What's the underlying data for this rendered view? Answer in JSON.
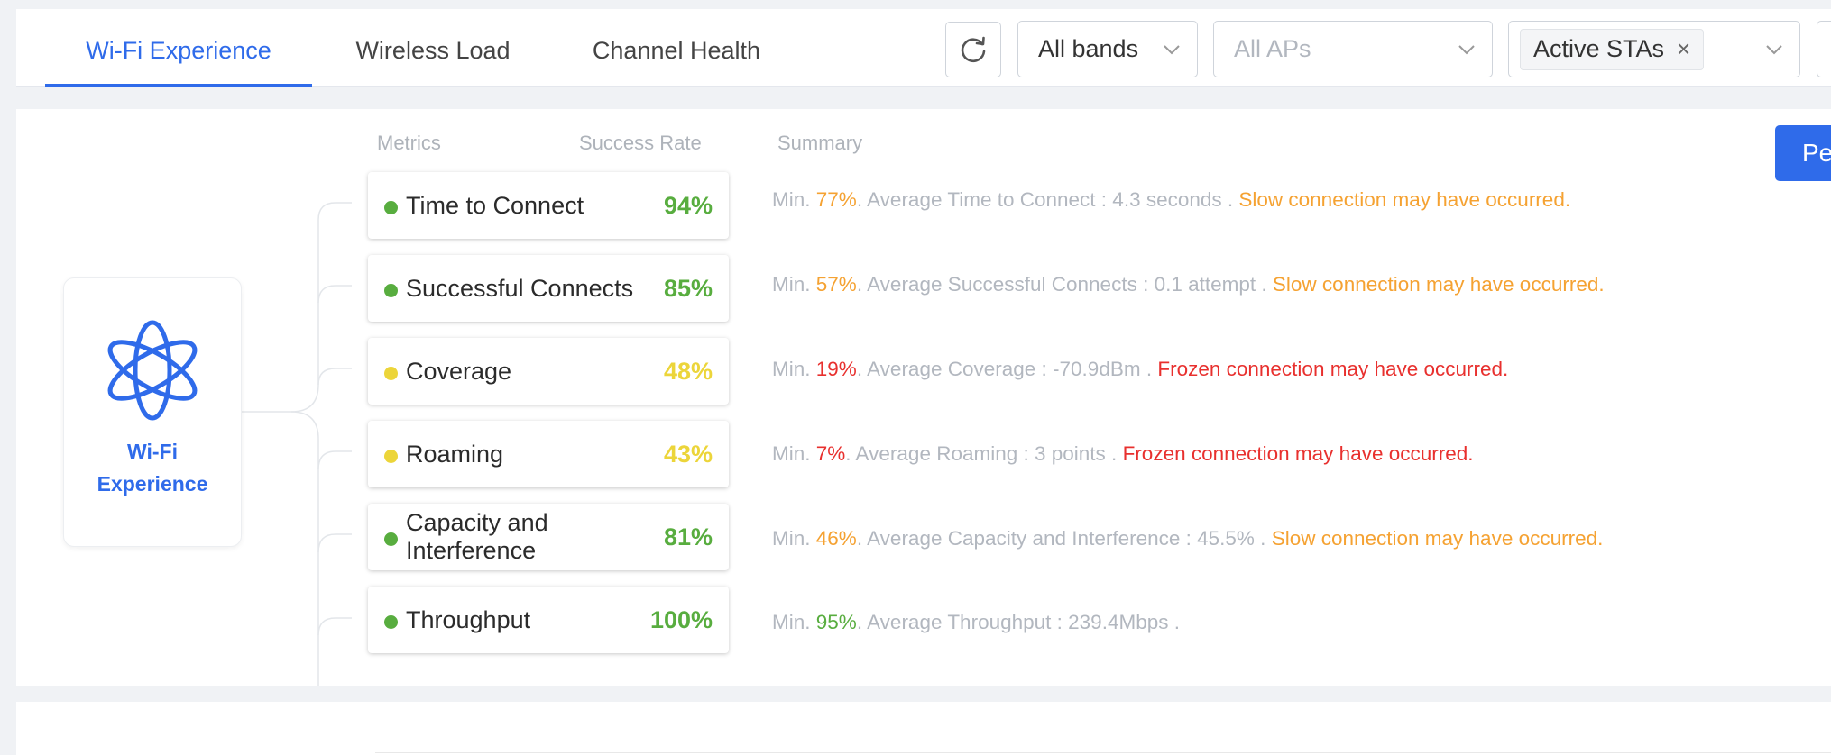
{
  "tabs": [
    {
      "label": "Wi-Fi Experience",
      "active": true
    },
    {
      "label": "Wireless Load",
      "active": false
    },
    {
      "label": "Channel Health",
      "active": false
    }
  ],
  "filters": {
    "bands": "All bands",
    "aps_placeholder": "All APs",
    "sta_tag": "Active STAs",
    "tag_remove": "×"
  },
  "primary_button": "Pe",
  "columns": {
    "metrics": "Metrics",
    "success_rate": "Success Rate",
    "summary": "Summary"
  },
  "root": {
    "label": "Wi-Fi Experience"
  },
  "colors": {
    "accent": "#2f6bea",
    "good": "#58ad3f",
    "warn": "#ecd53a",
    "slow": "#f5a232",
    "frozen": "#e8302e",
    "muted": "#b2b7bf"
  },
  "metrics": [
    {
      "name": "Time to Connect",
      "rate": "94%",
      "status": "good",
      "min_prefix": "Min. ",
      "min": "77%",
      "min_level": "slow",
      "detail": ". Average Time to Connect : 4.3 seconds . ",
      "warning": "Slow connection may have occurred.",
      "warning_level": "slow"
    },
    {
      "name": "Successful Connects",
      "rate": "85%",
      "status": "good",
      "min_prefix": "Min. ",
      "min": "57%",
      "min_level": "slow",
      "detail": ". Average Successful Connects : 0.1 attempt . ",
      "warning": "Slow connection may have occurred.",
      "warning_level": "slow"
    },
    {
      "name": "Coverage",
      "rate": "48%",
      "status": "warn",
      "min_prefix": "Min. ",
      "min": "19%",
      "min_level": "frozen",
      "detail": ". Average Coverage : -70.9dBm . ",
      "warning": "Frozen connection may have occurred.",
      "warning_level": "frozen"
    },
    {
      "name": "Roaming",
      "rate": "43%",
      "status": "warn",
      "min_prefix": "Min. ",
      "min": "7%",
      "min_level": "frozen",
      "detail": ". Average Roaming : 3 points . ",
      "warning": "Frozen connection may have occurred.",
      "warning_level": "frozen"
    },
    {
      "name": "Capacity and Interference",
      "rate": "81%",
      "status": "good",
      "min_prefix": "Min. ",
      "min": "46%",
      "min_level": "slow",
      "detail": ". Average Capacity and Interference : 45.5% . ",
      "warning": "Slow connection may have occurred.",
      "warning_level": "slow"
    },
    {
      "name": "Throughput",
      "rate": "100%",
      "status": "good",
      "min_prefix": "Min. ",
      "min": "95%",
      "min_level": "good",
      "detail": ". Average Throughput : 239.4Mbps .",
      "warning": "",
      "warning_level": "slow"
    }
  ]
}
